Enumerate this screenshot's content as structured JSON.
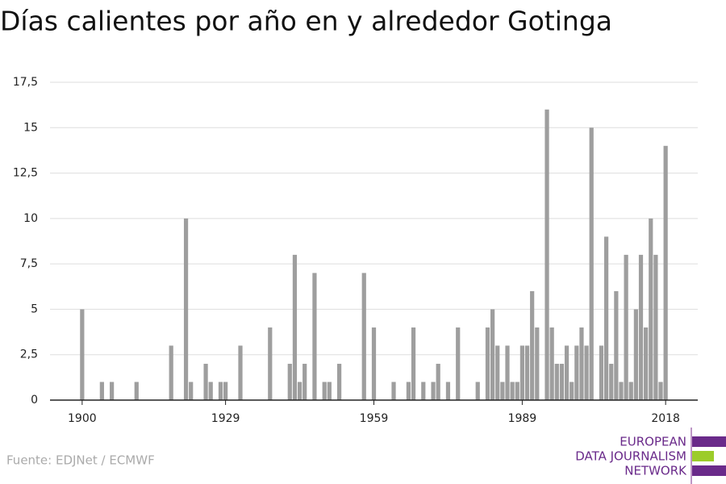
{
  "chart_data": {
    "type": "bar",
    "title": "Días calientes por año en y alrededor Gotinga",
    "source": "Fuente: EDJNet / ECMWF",
    "x": [
      1900,
      1901,
      1902,
      1903,
      1904,
      1905,
      1906,
      1907,
      1908,
      1909,
      1910,
      1911,
      1912,
      1913,
      1914,
      1915,
      1916,
      1917,
      1918,
      1919,
      1920,
      1921,
      1922,
      1923,
      1924,
      1925,
      1926,
      1927,
      1928,
      1929,
      1930,
      1931,
      1932,
      1933,
      1934,
      1935,
      1936,
      1937,
      1938,
      1939,
      1940,
      1941,
      1942,
      1943,
      1944,
      1945,
      1946,
      1947,
      1948,
      1949,
      1950,
      1951,
      1952,
      1953,
      1954,
      1955,
      1956,
      1957,
      1958,
      1959,
      1960,
      1961,
      1962,
      1963,
      1964,
      1965,
      1966,
      1967,
      1968,
      1969,
      1970,
      1971,
      1972,
      1973,
      1974,
      1975,
      1976,
      1977,
      1978,
      1979,
      1980,
      1981,
      1982,
      1983,
      1984,
      1985,
      1986,
      1987,
      1988,
      1989,
      1990,
      1991,
      1992,
      1993,
      1994,
      1995,
      1996,
      1997,
      1998,
      1999,
      2000,
      2001,
      2002,
      2003,
      2004,
      2005,
      2006,
      2007,
      2008,
      2009,
      2010,
      2011,
      2012,
      2013,
      2014,
      2015,
      2016,
      2017,
      2018
    ],
    "values": [
      5,
      0,
      0,
      0,
      1,
      0,
      1,
      0,
      0,
      0,
      0,
      1,
      0,
      0,
      0,
      0,
      0,
      0,
      3,
      0,
      0,
      10,
      1,
      0,
      0,
      2,
      1,
      0,
      1,
      1,
      0,
      0,
      3,
      0,
      0,
      0,
      0,
      0,
      4,
      0,
      0,
      0,
      2,
      8,
      1,
      2,
      0,
      7,
      0,
      1,
      1,
      0,
      2,
      0,
      0,
      0,
      0,
      7,
      0,
      4,
      0,
      0,
      0,
      1,
      0,
      0,
      1,
      4,
      0,
      1,
      0,
      1,
      2,
      0,
      1,
      0,
      4,
      0,
      0,
      0,
      1,
      0,
      4,
      5,
      3,
      1,
      3,
      1,
      1,
      3,
      3,
      6,
      4,
      0,
      16,
      4,
      2,
      2,
      3,
      1,
      3,
      4,
      3,
      15,
      0,
      3,
      9,
      2,
      6,
      1,
      8,
      1,
      5,
      8,
      4,
      10,
      8,
      1,
      14
    ],
    "color": "#9e9e9e",
    "xlim": [
      1893.5,
      2024.5
    ],
    "xticks": [
      1900,
      1929,
      1959,
      1989,
      2018
    ],
    "ylim": [
      0,
      17.5
    ],
    "yticks": [
      0,
      {
        "value": 2.5,
        "label": "2,5"
      },
      5,
      {
        "value": 7.5,
        "label": "7,5"
      },
      10,
      {
        "value": 12.5,
        "label": "12,5"
      },
      15,
      {
        "value": 17.5,
        "label": "17,5"
      }
    ],
    "grid": true
  },
  "logo": [
    "EUROPEAN",
    "DATA JOURNALISM",
    "NETWORK"
  ]
}
